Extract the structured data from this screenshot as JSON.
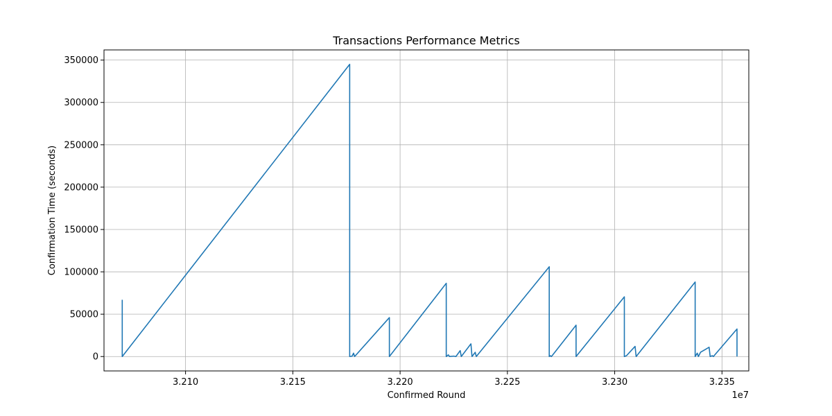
{
  "chart_data": {
    "type": "line",
    "title": "Transactions Performance Metrics",
    "xlabel": "Confirmed Round",
    "ylabel": "Confirmation Time (seconds)",
    "x_offset_label": "1e7",
    "xlim": [
      32062000,
      32362500
    ],
    "ylim": [
      -17000,
      362000
    ],
    "x_ticks": [
      32100000,
      32150000,
      32200000,
      32250000,
      32300000,
      32350000
    ],
    "x_tick_labels": [
      "3.210",
      "3.215",
      "3.220",
      "3.225",
      "3.230",
      "3.235"
    ],
    "y_ticks": [
      0,
      50000,
      100000,
      150000,
      200000,
      250000,
      300000,
      350000
    ],
    "y_tick_labels": [
      "0",
      "50000",
      "100000",
      "150000",
      "200000",
      "250000",
      "300000",
      "350000"
    ],
    "grid": true,
    "line_color": "#1f77b4",
    "series": [
      {
        "name": "",
        "points": [
          [
            32070500,
            67000
          ],
          [
            32070500,
            0
          ],
          [
            32176500,
            345000
          ],
          [
            32176500,
            0
          ],
          [
            32177600,
            400
          ],
          [
            32178300,
            4000
          ],
          [
            32178800,
            0
          ],
          [
            32195000,
            46000
          ],
          [
            32195000,
            0
          ],
          [
            32221500,
            86500
          ],
          [
            32221500,
            0
          ],
          [
            32222500,
            2000
          ],
          [
            32223000,
            0
          ],
          [
            32225000,
            500
          ],
          [
            32226000,
            0
          ],
          [
            32228000,
            7000
          ],
          [
            32228500,
            0
          ],
          [
            32233000,
            15000
          ],
          [
            32233500,
            0
          ],
          [
            32235000,
            5000
          ],
          [
            32235500,
            0
          ],
          [
            32269500,
            106000
          ],
          [
            32269500,
            0
          ],
          [
            32270000,
            1000
          ],
          [
            32270500,
            0
          ],
          [
            32271000,
            1500
          ],
          [
            32282000,
            37000
          ],
          [
            32282000,
            0
          ],
          [
            32304500,
            70500
          ],
          [
            32304500,
            0
          ],
          [
            32305500,
            1000
          ],
          [
            32309500,
            12000
          ],
          [
            32310000,
            0
          ],
          [
            32337500,
            88000
          ],
          [
            32337500,
            0
          ],
          [
            32338500,
            4000
          ],
          [
            32339000,
            0
          ],
          [
            32340000,
            5000
          ],
          [
            32344000,
            11000
          ],
          [
            32344500,
            0
          ],
          [
            32345500,
            1000
          ],
          [
            32346000,
            0
          ],
          [
            32346500,
            1500
          ],
          [
            32357000,
            32500
          ],
          [
            32357000,
            0
          ]
        ]
      }
    ]
  }
}
